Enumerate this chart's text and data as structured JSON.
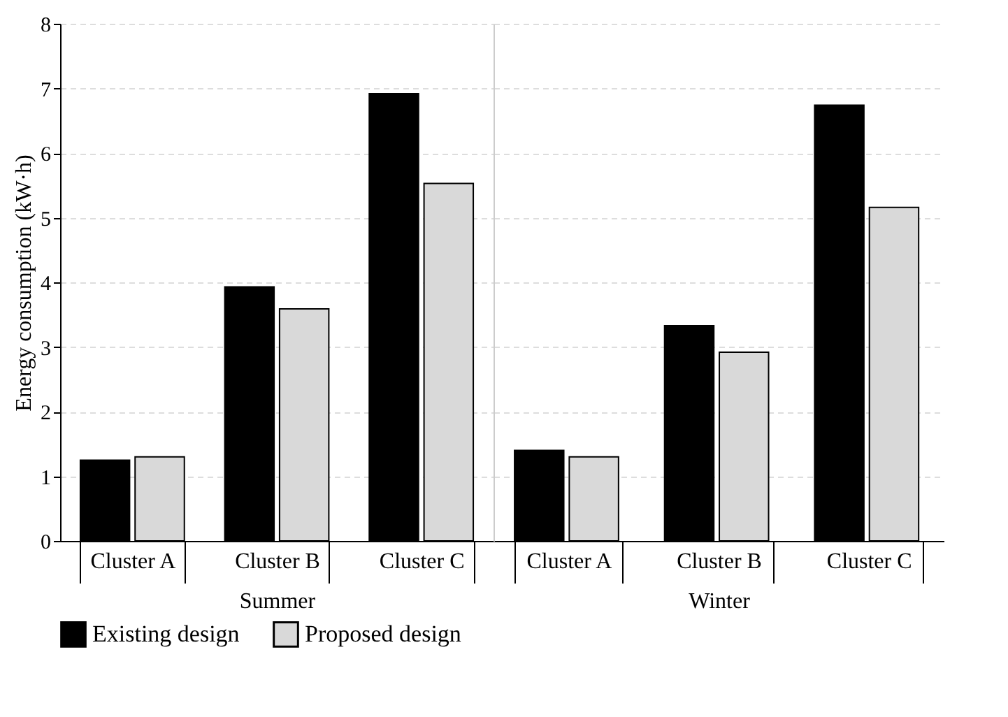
{
  "chart_data": [
    {
      "type": "bar",
      "xlabel": "Summer",
      "ylabel": "Energy consumption (kW·h)",
      "categories": [
        "Cluster A",
        "Cluster B",
        "Cluster C"
      ],
      "series": [
        {
          "name": "Existing design",
          "color": "#000000",
          "values": [
            1.25,
            3.93,
            6.92
          ]
        },
        {
          "name": "Proposed design",
          "color": "#d9d9d9",
          "values": [
            1.3,
            3.59,
            5.53
          ]
        }
      ],
      "ylim": [
        0,
        8
      ],
      "yticks": [
        0,
        1,
        2,
        3,
        4,
        5,
        6,
        7,
        8
      ],
      "grid": "y",
      "legend": "bottom"
    },
    {
      "type": "bar",
      "xlabel": "Winter",
      "categories": [
        "Cluster A",
        "Cluster B",
        "Cluster C"
      ],
      "series": [
        {
          "name": "Existing design",
          "color": "#000000",
          "values": [
            1.4,
            3.33,
            6.74
          ]
        },
        {
          "name": "Proposed design",
          "color": "#d9d9d9",
          "values": [
            1.3,
            2.92,
            5.16
          ]
        }
      ],
      "ylim": [
        0,
        8
      ],
      "yticks": [
        0,
        1,
        2,
        3,
        4,
        5,
        6,
        7,
        8
      ],
      "grid": "y",
      "legend": "bottom",
      "tick_labels": "x"
    }
  ]
}
